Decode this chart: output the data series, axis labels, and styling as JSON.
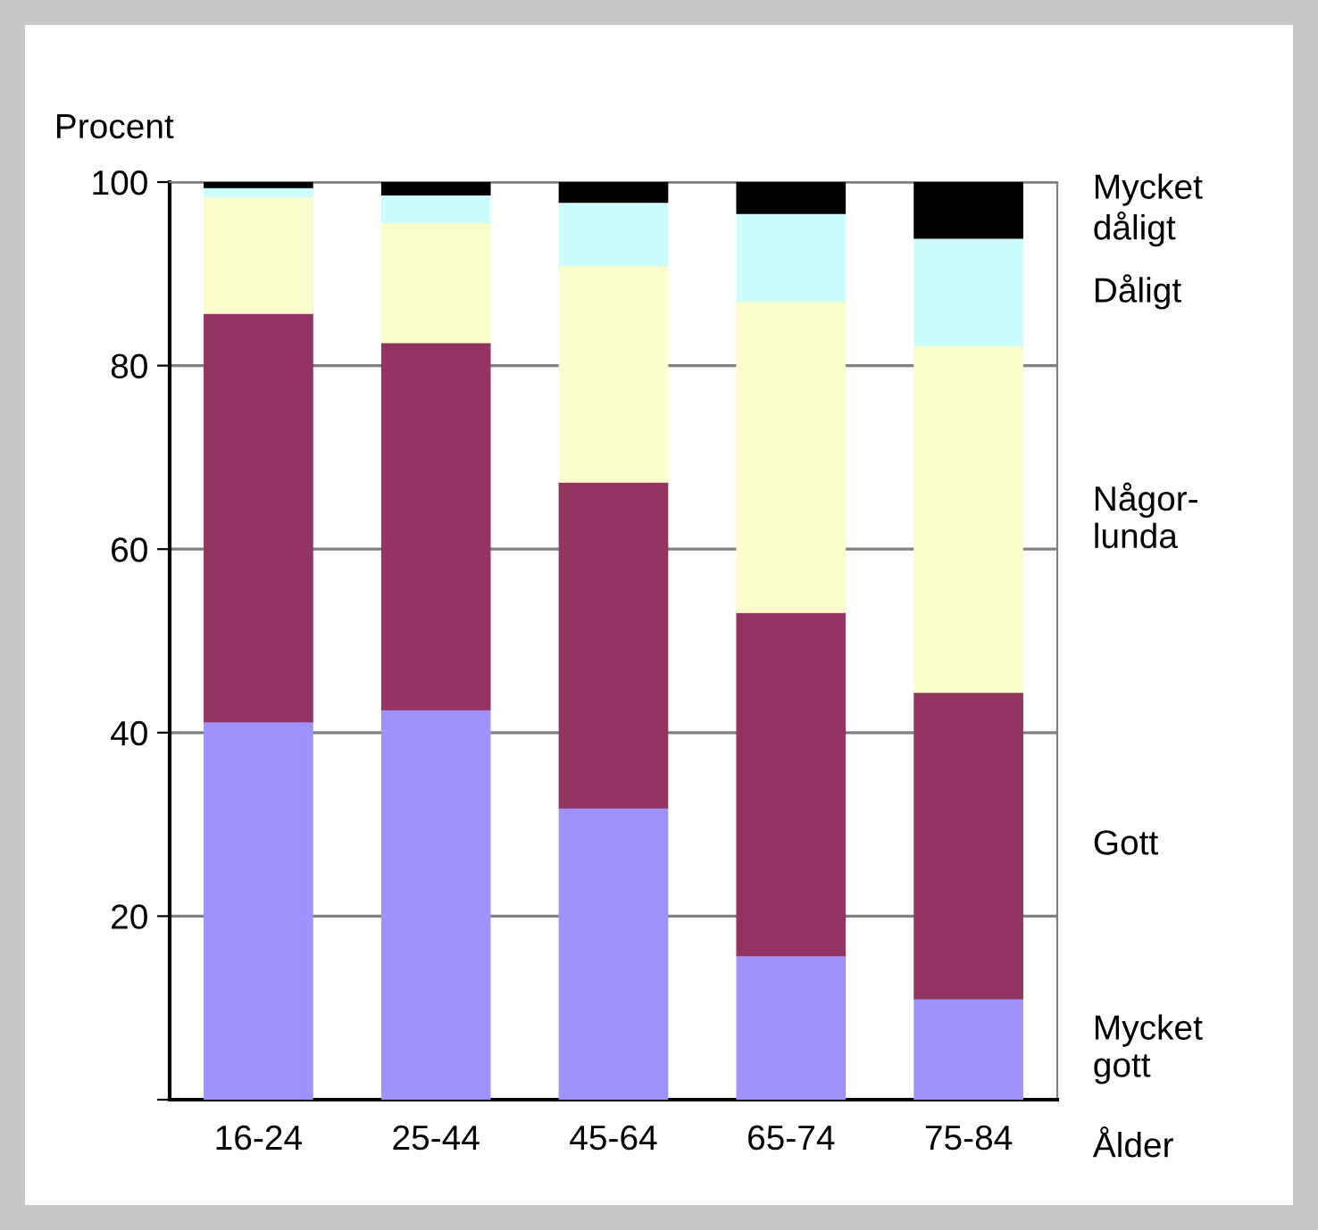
{
  "chart_data": {
    "type": "bar",
    "stacked": true,
    "ylabel": "Procent",
    "xlabel": "Ålder",
    "categories": [
      "16-24",
      "25-44",
      "45-64",
      "65-74",
      "75-84"
    ],
    "series": [
      {
        "name": "Mycket\ngott",
        "color": "#a092fc",
        "values": [
          41.2,
          42.5,
          31.8,
          15.7,
          11.0
        ]
      },
      {
        "name": "Gott",
        "color": "#933462",
        "values": [
          44.5,
          40.0,
          35.5,
          37.4,
          33.4
        ]
      },
      {
        "name": "Någor-\nlunda",
        "color": "#fbfccb",
        "values": [
          12.7,
          13.1,
          23.6,
          33.9,
          37.8
        ]
      },
      {
        "name": "Dåligt",
        "color": "#ccfcfc",
        "values": [
          1.0,
          3.0,
          6.9,
          9.6,
          11.7
        ]
      },
      {
        "name": "Mycket\ndåligt",
        "color": "#000000",
        "values": [
          0.6,
          1.4,
          2.2,
          3.4,
          6.1
        ]
      }
    ],
    "ylim": [
      0,
      100
    ],
    "yticks": [
      {
        "value": 0,
        "label": null
      },
      20,
      40,
      60,
      80,
      100
    ],
    "grid": "y"
  }
}
